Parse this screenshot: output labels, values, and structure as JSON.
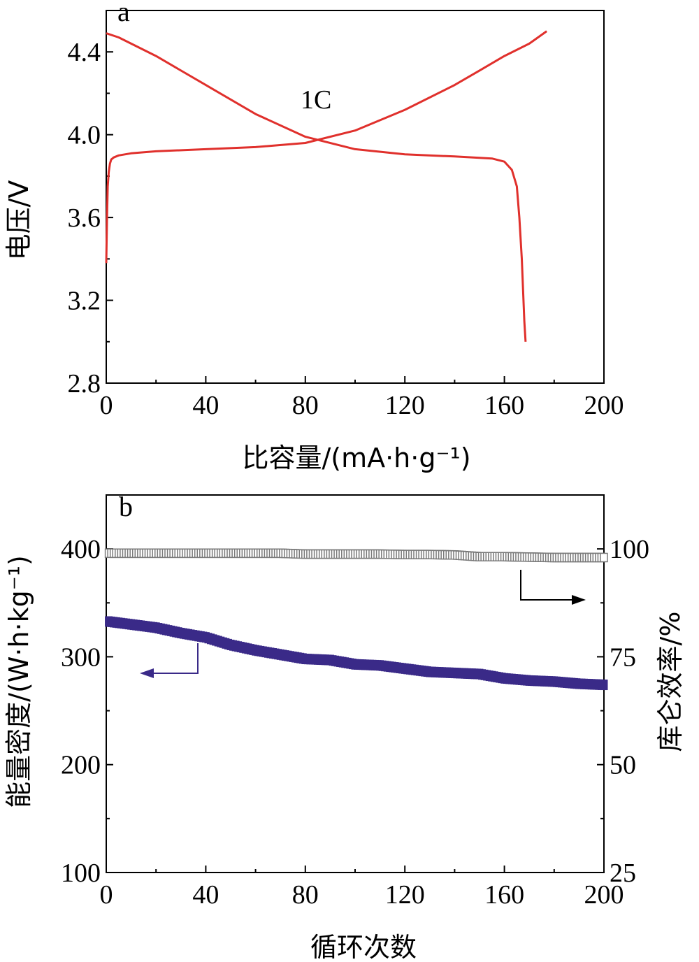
{
  "chart_data": [
    {
      "type": "line",
      "panel_label": "a",
      "xlabel": "比容量/(mA·h·g⁻¹)",
      "ylabel": "电压/V",
      "xlim": [
        0,
        200
      ],
      "ylim": [
        2.8,
        4.6
      ],
      "x_ticks": [
        "0",
        "40",
        "80",
        "120",
        "160",
        "200"
      ],
      "y_ticks": [
        "2.8",
        "3.2",
        "3.6",
        "4.0",
        "4.4"
      ],
      "annotation": "1C",
      "color": "#e0302c",
      "series": [
        {
          "x": [
            0,
            0.3,
            0.6,
            1,
            1.5,
            2,
            3,
            5,
            10,
            20,
            40,
            60,
            80,
            100,
            120,
            140,
            150,
            160,
            170,
            177
          ],
          "y": [
            3.38,
            3.6,
            3.75,
            3.82,
            3.86,
            3.88,
            3.89,
            3.9,
            3.91,
            3.92,
            3.93,
            3.94,
            3.96,
            4.02,
            4.12,
            4.24,
            4.31,
            4.38,
            4.44,
            4.5
          ]
        },
        {
          "x": [
            0,
            5,
            10,
            20,
            40,
            60,
            80,
            100,
            120,
            140,
            155,
            160,
            163,
            165,
            166,
            167,
            167.5,
            168,
            168.5
          ],
          "y": [
            4.49,
            4.47,
            4.44,
            4.38,
            4.24,
            4.1,
            3.99,
            3.93,
            3.905,
            3.895,
            3.885,
            3.87,
            3.83,
            3.75,
            3.6,
            3.4,
            3.25,
            3.1,
            3.0
          ]
        }
      ]
    },
    {
      "type": "scatter",
      "panel_label": "b",
      "xlabel": "循环次数",
      "ylabel_left": "能量密度/(W·h·kg⁻¹)",
      "ylabel_right": "库仑效率/%",
      "xlim": [
        0,
        200
      ],
      "ylim_left": [
        100,
        450
      ],
      "ylim_right": [
        25,
        112.5
      ],
      "x_ticks": [
        "0",
        "40",
        "80",
        "120",
        "160",
        "200"
      ],
      "y_ticks_left": [
        "100",
        "200",
        "300",
        "400"
      ],
      "y_ticks_right": [
        "25",
        "50",
        "75",
        "100"
      ],
      "colors": {
        "energy": "#3a2a88",
        "efficiency": "#7a7a7a"
      },
      "series": [
        {
          "axis": "left",
          "x": [
            0,
            10,
            20,
            30,
            40,
            50,
            60,
            70,
            80,
            90,
            100,
            110,
            120,
            130,
            140,
            150,
            160,
            170,
            180,
            190,
            200
          ],
          "y": [
            333,
            330,
            327,
            322,
            318,
            311,
            306,
            302,
            298,
            297,
            293,
            292,
            289,
            286,
            285,
            284,
            280,
            278,
            277,
            275,
            274
          ]
        },
        {
          "axis": "right",
          "x": [
            0,
            10,
            20,
            30,
            40,
            50,
            60,
            70,
            80,
            90,
            100,
            110,
            120,
            130,
            140,
            150,
            160,
            170,
            180,
            190,
            200
          ],
          "y": [
            99,
            99,
            99,
            99,
            99,
            99,
            99,
            99,
            98.8,
            98.8,
            98.8,
            98.8,
            98.7,
            98.7,
            98.6,
            98.2,
            98.2,
            98.1,
            98,
            98,
            98
          ]
        }
      ]
    }
  ]
}
